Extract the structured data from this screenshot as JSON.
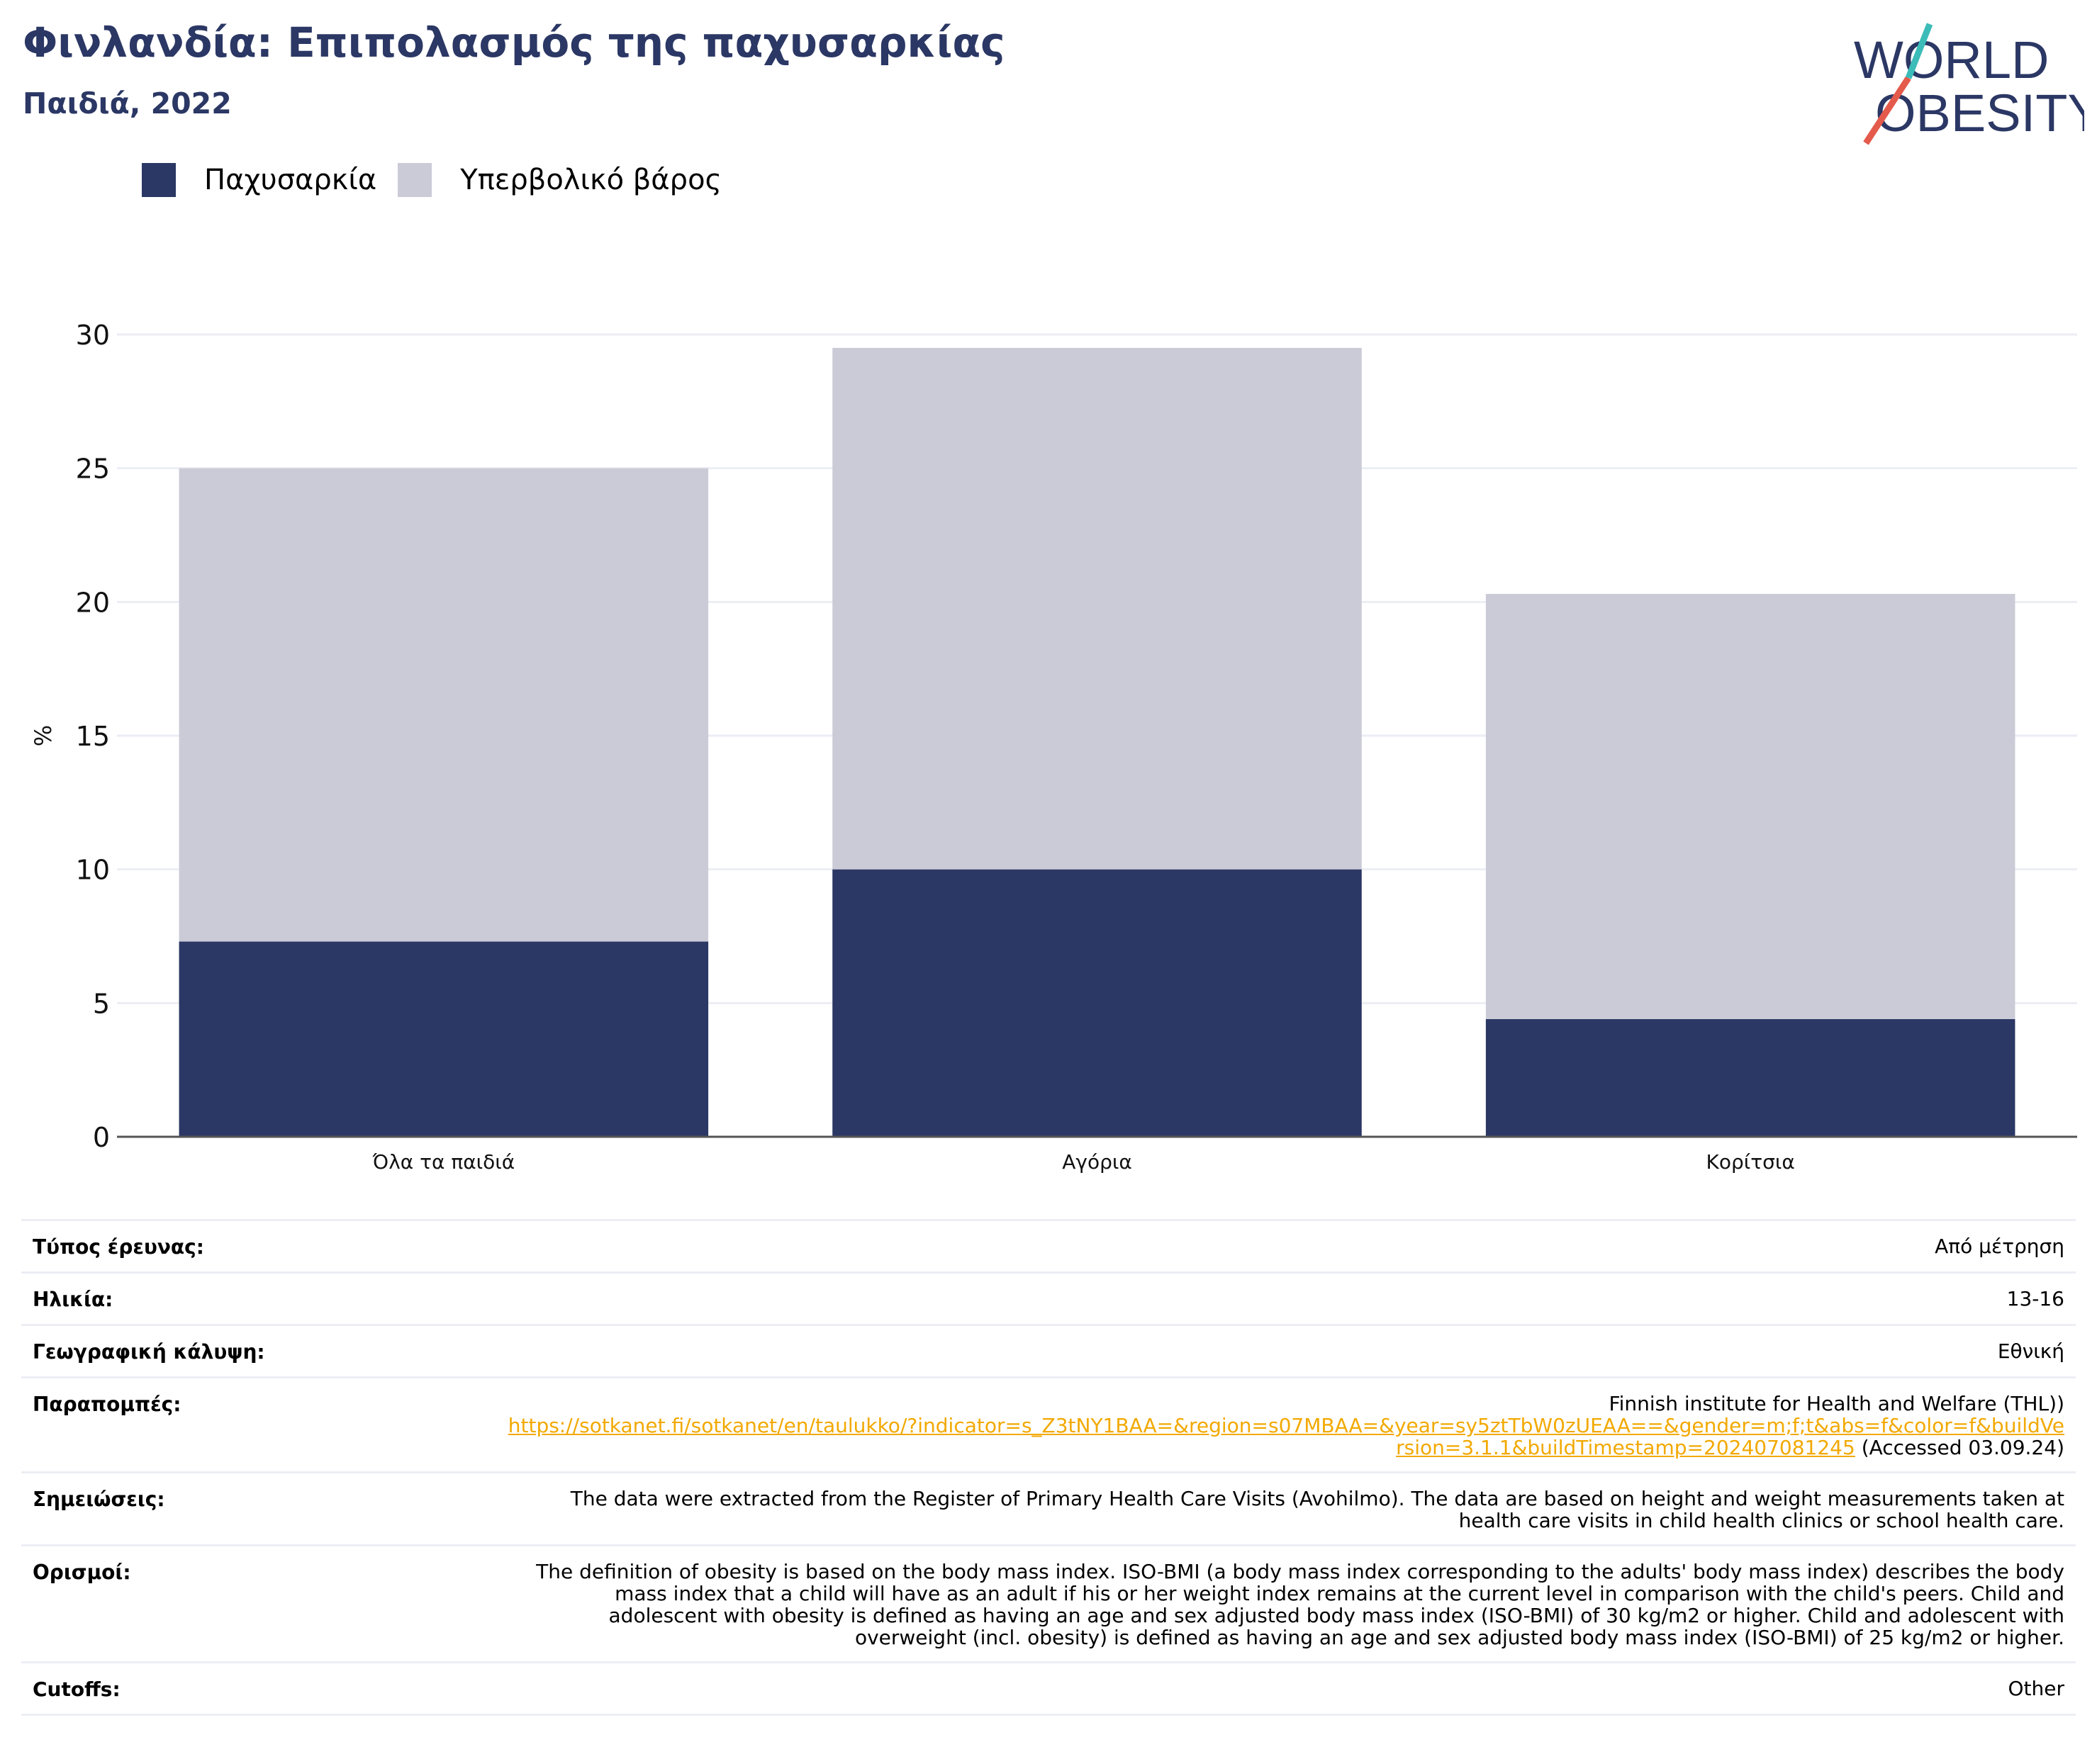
{
  "header": {
    "title": "Φινλανδία: Επιπολασμός της παχυσαρκίας",
    "subtitle": "Παιδιά, 2022",
    "logo_line1": "WORLD",
    "logo_line2": "OBESITY"
  },
  "colors": {
    "obesity": "#2b3764",
    "overweight": "#cacbd7",
    "accent": "#f2a900",
    "logo_teal": "#3bbcb8",
    "logo_red": "#e45a4b"
  },
  "chart_data": {
    "type": "bar",
    "stacked": true,
    "categories": [
      "Όλα τα παιδιά",
      "Αγόρια",
      "Κορίτσια"
    ],
    "series": [
      {
        "name": "Παχυσαρκία",
        "values": [
          7.3,
          10.0,
          4.4
        ]
      },
      {
        "name": "Υπερβολικό βάρος",
        "values": [
          17.7,
          19.5,
          15.9
        ]
      }
    ],
    "ylabel": "%",
    "xlabel": "",
    "ylim": [
      0,
      30
    ],
    "yticks": [
      0,
      5,
      10,
      15,
      20,
      25,
      30
    ],
    "grid": true,
    "legend_position": "top-left"
  },
  "meta": {
    "survey_type": {
      "label": "Τύπος έρευνας:",
      "value": "Από μέτρηση"
    },
    "age": {
      "label": "Ηλικία:",
      "value": "13-16"
    },
    "coverage": {
      "label": "Γεωγραφική κάλυψη:",
      "value": "Εθνική"
    },
    "references": {
      "label": "Παραπομπές:",
      "source": "Finnish institute for Health and Welfare (THL))",
      "url": "https://sotkanet.fi/sotkanet/en/taulukko/?indicator=s_Z3tNY1BAA=&region=s07MBAA=&year=sy5ztTbW0zUEAA==&gender=m;f;t&abs=f&color=f&buildVersion=3.1.1&buildTimestamp=202407081245",
      "accessed": " (Accessed 03.09.24)"
    },
    "notes": {
      "label": "Σημειώσεις:",
      "value": "The data were extracted from the Register of Primary Health Care Visits (Avohilmo). The data are based on height and weight measurements taken at health care visits in child health clinics or school health care."
    },
    "definitions": {
      "label": "Ορισμοί:",
      "value": "The definition of obesity is based on the body mass index. ISO-BMI (a body mass index corresponding to the adults' body mass index) describes the body mass index that a child will have as an adult if his or her weight index remains at the current level in comparison with the child's peers. Child and adolescent with obesity is defined as having an age and sex adjusted body mass index (ISO-BMI) of 30 kg/m2 or higher. Child and adolescent with overweight (incl. obesity) is defined as having an age and sex adjusted body mass index (ISO-BMI) of 25 kg/m2 or higher."
    },
    "cutoffs": {
      "label": "Cutoffs:",
      "value": "Other"
    }
  }
}
